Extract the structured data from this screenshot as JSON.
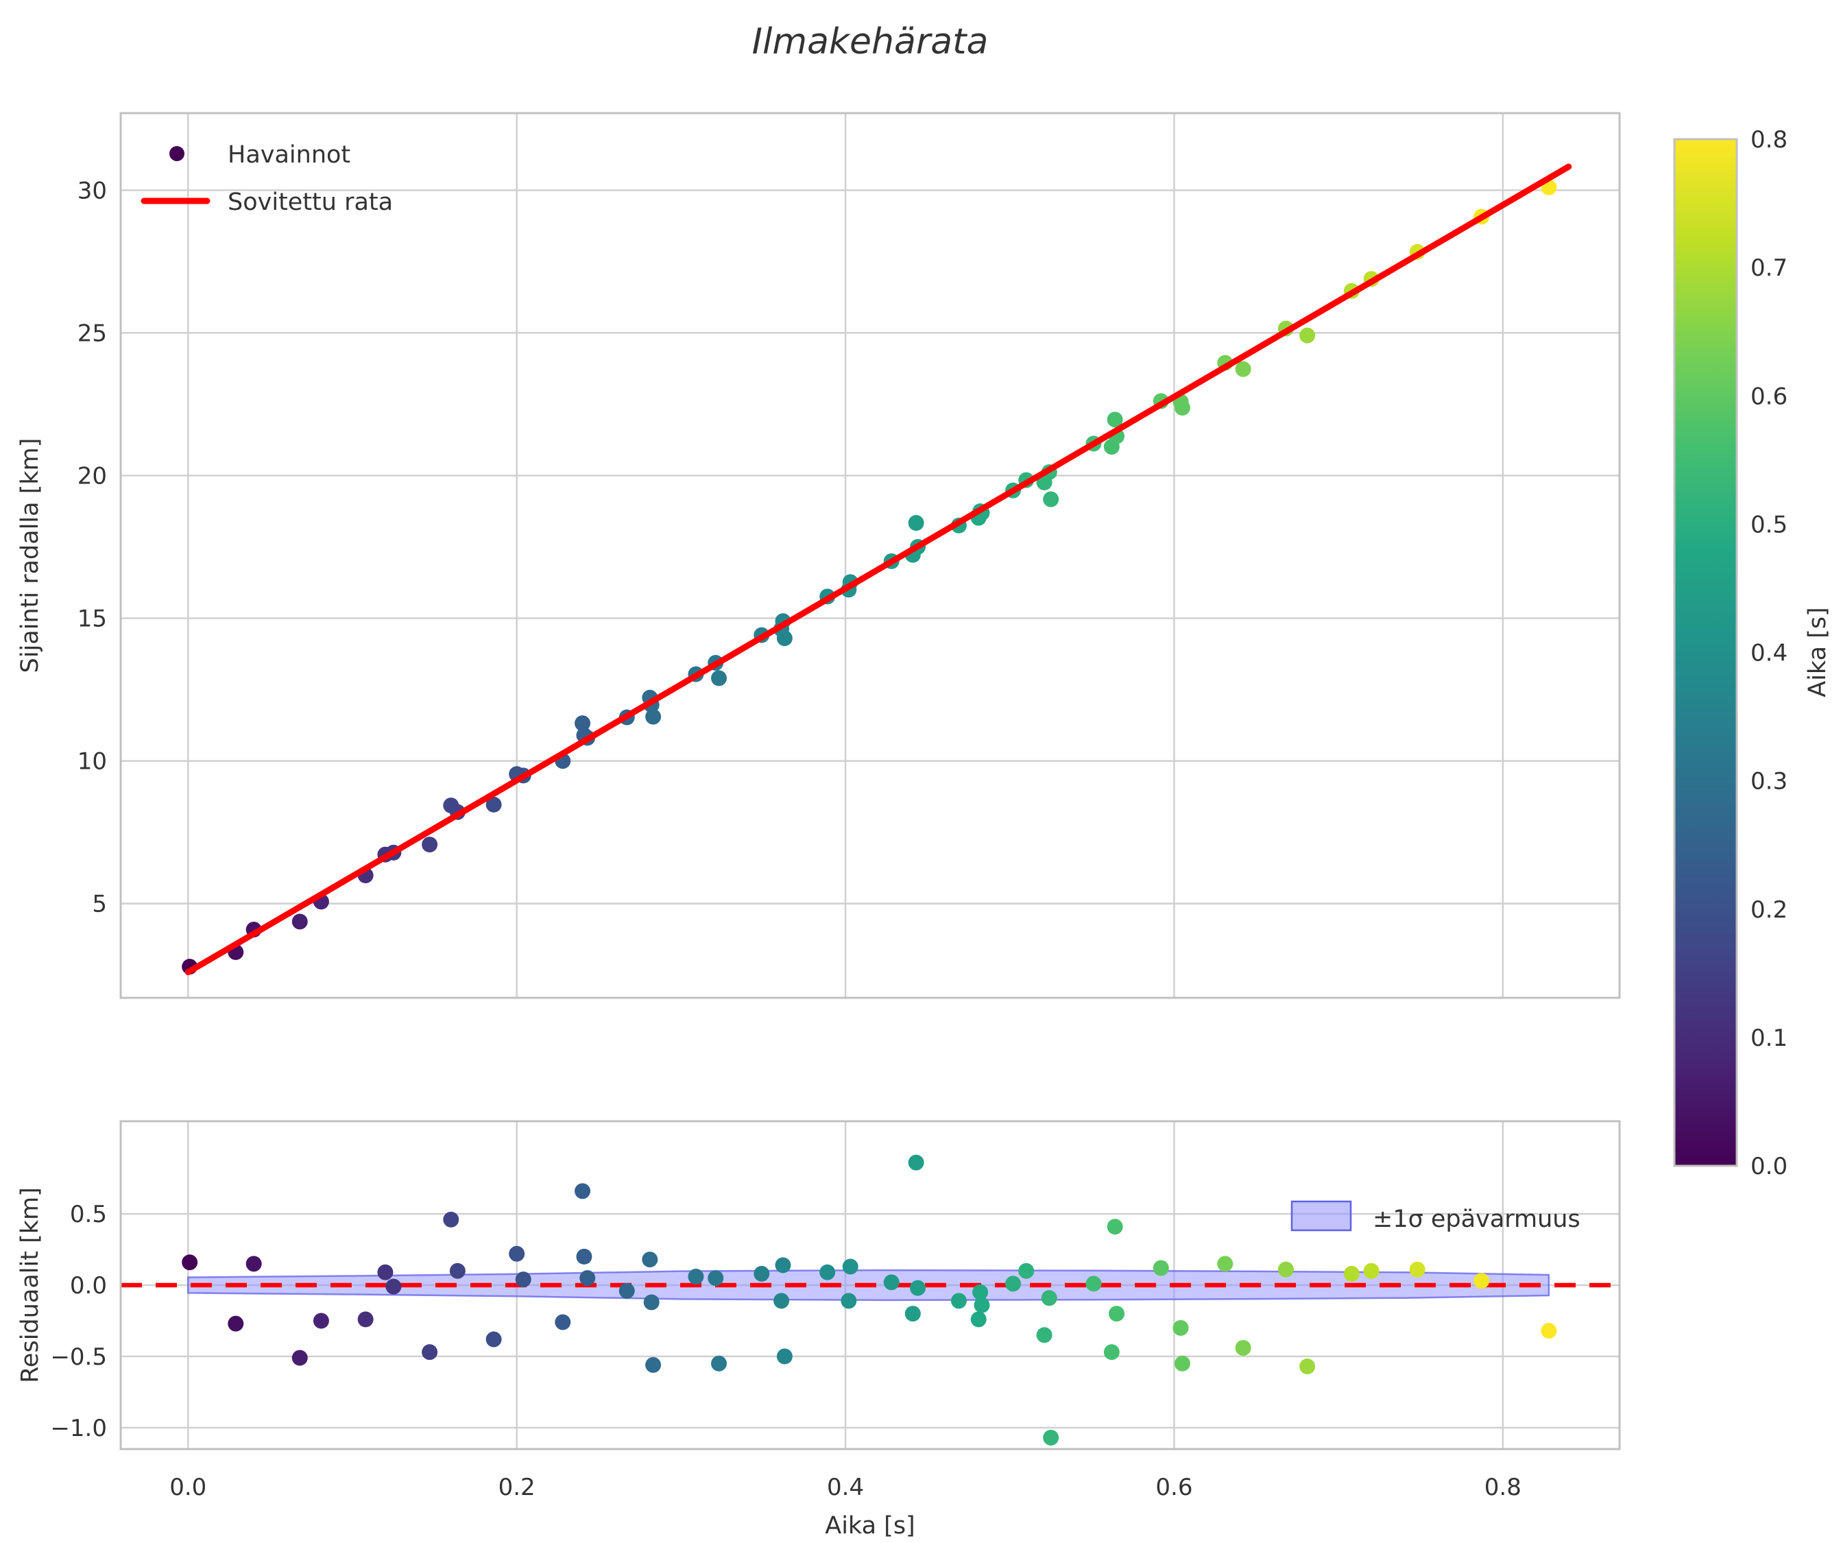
{
  "title": "Ilmakehärata",
  "axes": {
    "x": {
      "label": "Aika [s]",
      "tick_labels": [
        "0.0",
        "0.2",
        "0.4",
        "0.6",
        "0.8"
      ],
      "tick_values": [
        0.0,
        0.2,
        0.4,
        0.6,
        0.8
      ]
    },
    "main_y": {
      "label": "Sijainti radalla [km]",
      "tick_labels": [
        "5",
        "10",
        "15",
        "20",
        "25",
        "30"
      ],
      "tick_values": [
        5,
        10,
        15,
        20,
        25,
        30
      ]
    },
    "residual_y": {
      "label": "Residuaalit [km]",
      "tick_labels": [
        "0.5",
        "0.0",
        "−0.5",
        "−1.0"
      ],
      "tick_values": [
        0.5,
        0.0,
        -0.5,
        -1.0
      ]
    },
    "colorbar": {
      "label": "Aika [s]",
      "tick_labels": [
        "0.0",
        "0.1",
        "0.2",
        "0.3",
        "0.4",
        "0.5",
        "0.6",
        "0.7",
        "0.8"
      ],
      "tick_values": [
        0.0,
        0.1,
        0.2,
        0.3,
        0.4,
        0.5,
        0.6,
        0.7,
        0.8
      ]
    }
  },
  "legend_main": {
    "observations": "Havainnot",
    "fit": "Sovitettu rata"
  },
  "legend_residual": {
    "band": "±1σ epävarmuus"
  },
  "colors": {
    "fit_line": "#ff0000",
    "zero_line": "#ff0000",
    "band_fill": "#9090ff",
    "band_edge": "#6060e8",
    "grid": "#d0d0d0",
    "spine": "#c0c0c0",
    "text": "#333333",
    "viridis": [
      "#440154",
      "#482475",
      "#414487",
      "#355f8d",
      "#2a788e",
      "#21918c",
      "#22a884",
      "#44bf70",
      "#7ad151",
      "#bddf26",
      "#fde725"
    ]
  },
  "chart_data": [
    {
      "type": "scatter",
      "panel": "main",
      "title": "Ilmakehärata",
      "xlabel": "Aika [s]",
      "ylabel": "Sijainti radalla [km]",
      "xlim": [
        -0.041,
        0.871
      ],
      "ylim": [
        1.7,
        32.7
      ],
      "grid": true,
      "legend_position": "upper left",
      "legend_entries": [
        "Havainnot",
        "Sovitettu rata"
      ],
      "color_mapping": "viridis over Aika 0.0-0.8 s",
      "fit_line": {
        "name": "Sovitettu rata",
        "slope_km_per_s": 33.6,
        "intercept_km": 2.6,
        "t_start": 0.0,
        "t_end": 0.84
      },
      "points_t_y_residual": [
        [
          0.001,
          2.79,
          0.16
        ],
        [
          0.029,
          3.3,
          -0.27
        ],
        [
          0.04,
          4.09,
          0.15
        ],
        [
          0.068,
          4.37,
          -0.51
        ],
        [
          0.081,
          5.07,
          -0.25
        ],
        [
          0.108,
          5.99,
          -0.24
        ],
        [
          0.12,
          6.72,
          0.09
        ],
        [
          0.125,
          6.79,
          -0.01
        ],
        [
          0.147,
          7.07,
          -0.47
        ],
        [
          0.16,
          8.44,
          0.46
        ],
        [
          0.164,
          8.21,
          0.1
        ],
        [
          0.186,
          8.47,
          -0.38
        ],
        [
          0.2,
          9.54,
          0.22
        ],
        [
          0.204,
          9.49,
          0.04
        ],
        [
          0.228,
          10.0,
          -0.26
        ],
        [
          0.24,
          11.32,
          0.66
        ],
        [
          0.241,
          10.9,
          0.2
        ],
        [
          0.243,
          10.81,
          0.05
        ],
        [
          0.267,
          11.53,
          -0.04
        ],
        [
          0.281,
          12.22,
          0.18
        ],
        [
          0.282,
          11.96,
          -0.12
        ],
        [
          0.283,
          11.55,
          -0.56
        ],
        [
          0.309,
          13.04,
          0.06
        ],
        [
          0.321,
          13.44,
          0.05
        ],
        [
          0.323,
          12.9,
          -0.55
        ],
        [
          0.349,
          14.41,
          0.08
        ],
        [
          0.361,
          14.62,
          -0.11
        ],
        [
          0.362,
          14.9,
          0.14
        ],
        [
          0.363,
          14.3,
          -0.5
        ],
        [
          0.389,
          15.76,
          0.09
        ],
        [
          0.402,
          16.0,
          -0.11
        ],
        [
          0.403,
          16.27,
          0.13
        ],
        [
          0.428,
          17.0,
          0.02
        ],
        [
          0.441,
          17.22,
          -0.2
        ],
        [
          0.443,
          18.34,
          0.86
        ],
        [
          0.444,
          17.5,
          -0.02
        ],
        [
          0.469,
          18.25,
          -0.11
        ],
        [
          0.481,
          18.52,
          -0.24
        ],
        [
          0.482,
          18.75,
          -0.05
        ],
        [
          0.483,
          18.69,
          -0.14
        ],
        [
          0.502,
          19.48,
          0.01
        ],
        [
          0.51,
          19.84,
          0.1
        ],
        [
          0.521,
          19.76,
          -0.35
        ],
        [
          0.524,
          20.12,
          -0.09
        ],
        [
          0.525,
          19.17,
          -1.07
        ],
        [
          0.551,
          21.12,
          0.01
        ],
        [
          0.562,
          21.01,
          -0.47
        ],
        [
          0.564,
          21.96,
          0.41
        ],
        [
          0.565,
          21.38,
          -0.2
        ],
        [
          0.592,
          22.61,
          0.12
        ],
        [
          0.604,
          22.59,
          -0.3
        ],
        [
          0.605,
          22.38,
          -0.55
        ],
        [
          0.631,
          23.95,
          0.15
        ],
        [
          0.642,
          23.73,
          -0.44
        ],
        [
          0.668,
          25.15,
          0.11
        ],
        [
          0.681,
          24.91,
          -0.57
        ],
        [
          0.708,
          26.47,
          0.08
        ],
        [
          0.72,
          26.89,
          0.1
        ],
        [
          0.748,
          27.84,
          0.11
        ],
        [
          0.787,
          29.07,
          0.03
        ],
        [
          0.828,
          30.1,
          -0.32
        ]
      ]
    },
    {
      "type": "scatter",
      "panel": "residuals",
      "xlabel": "Aika [s]",
      "ylabel": "Residuaalit [km]",
      "xlim": [
        -0.041,
        0.871
      ],
      "ylim": [
        -1.15,
        1.15
      ],
      "grid": true,
      "zero_line": 0.0,
      "legend_entries": [
        "±1σ epävarmuus"
      ],
      "band_t_halfwidth": [
        [
          0.0,
          0.055
        ],
        [
          0.1,
          0.065
        ],
        [
          0.2,
          0.078
        ],
        [
          0.3,
          0.098
        ],
        [
          0.42,
          0.105
        ],
        [
          0.55,
          0.102
        ],
        [
          0.65,
          0.097
        ],
        [
          0.74,
          0.09
        ],
        [
          0.828,
          0.072
        ]
      ]
    },
    {
      "type": "colorbar",
      "label": "Aika [s]",
      "range": [
        0.0,
        0.8
      ],
      "colormap": "viridis"
    }
  ]
}
